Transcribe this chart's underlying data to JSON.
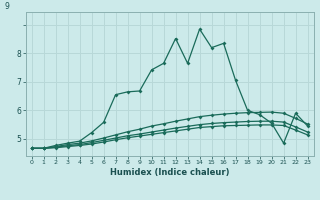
{
  "xlabel": "Humidex (Indice chaleur)",
  "bg_color": "#cceaea",
  "grid_color": "#b8d8d8",
  "line_color": "#1a6b5a",
  "spine_color": "#8ab0b0",
  "tick_color": "#1a5050",
  "xlim": [
    -0.5,
    23.5
  ],
  "ylim": [
    4.4,
    9.45
  ],
  "xtick_labels": [
    "0",
    "1",
    "2",
    "3",
    "4",
    "5",
    "6",
    "7",
    "8",
    "9",
    "10",
    "11",
    "12",
    "13",
    "14",
    "15",
    "16",
    "17",
    "18",
    "19",
    "20",
    "21",
    "22",
    "23"
  ],
  "xtick_vals": [
    0,
    1,
    2,
    3,
    4,
    5,
    6,
    7,
    8,
    9,
    10,
    11,
    12,
    13,
    14,
    15,
    16,
    17,
    18,
    19,
    20,
    21,
    22,
    23
  ],
  "ytick_vals": [
    5,
    6,
    7,
    8,
    9
  ],
  "line1_x": [
    0,
    1,
    2,
    3,
    4,
    5,
    6,
    7,
    8,
    9,
    10,
    11,
    12,
    13,
    14,
    15,
    16,
    17,
    18,
    19,
    20,
    21,
    22,
    23
  ],
  "line1_y": [
    4.67,
    4.67,
    4.77,
    4.85,
    4.92,
    5.22,
    5.58,
    6.55,
    6.65,
    6.68,
    7.42,
    7.65,
    8.52,
    7.65,
    8.85,
    8.2,
    8.35,
    7.05,
    6.0,
    5.85,
    5.55,
    4.85,
    5.9,
    5.45
  ],
  "line2_x": [
    0,
    1,
    2,
    3,
    4,
    5,
    6,
    7,
    8,
    9,
    10,
    11,
    12,
    13,
    14,
    15,
    16,
    17,
    18,
    19,
    20,
    21,
    22,
    23
  ],
  "line2_y": [
    4.67,
    4.67,
    4.73,
    4.8,
    4.85,
    4.93,
    5.03,
    5.14,
    5.25,
    5.34,
    5.45,
    5.53,
    5.62,
    5.7,
    5.78,
    5.83,
    5.87,
    5.9,
    5.92,
    5.93,
    5.94,
    5.9,
    5.72,
    5.52
  ],
  "line3_x": [
    0,
    1,
    2,
    3,
    4,
    5,
    6,
    7,
    8,
    9,
    10,
    11,
    12,
    13,
    14,
    15,
    16,
    17,
    18,
    19,
    20,
    21,
    22,
    23
  ],
  "line3_y": [
    4.67,
    4.67,
    4.71,
    4.76,
    4.8,
    4.87,
    4.95,
    5.03,
    5.11,
    5.17,
    5.24,
    5.31,
    5.38,
    5.44,
    5.5,
    5.54,
    5.57,
    5.59,
    5.61,
    5.62,
    5.62,
    5.59,
    5.42,
    5.24
  ],
  "line4_x": [
    0,
    1,
    2,
    3,
    4,
    5,
    6,
    7,
    8,
    9,
    10,
    11,
    12,
    13,
    14,
    15,
    16,
    17,
    18,
    19,
    20,
    21,
    22,
    23
  ],
  "line4_y": [
    4.67,
    4.67,
    4.69,
    4.73,
    4.77,
    4.82,
    4.89,
    4.97,
    5.04,
    5.1,
    5.16,
    5.22,
    5.28,
    5.34,
    5.4,
    5.43,
    5.46,
    5.47,
    5.48,
    5.49,
    5.49,
    5.47,
    5.31,
    5.14
  ]
}
